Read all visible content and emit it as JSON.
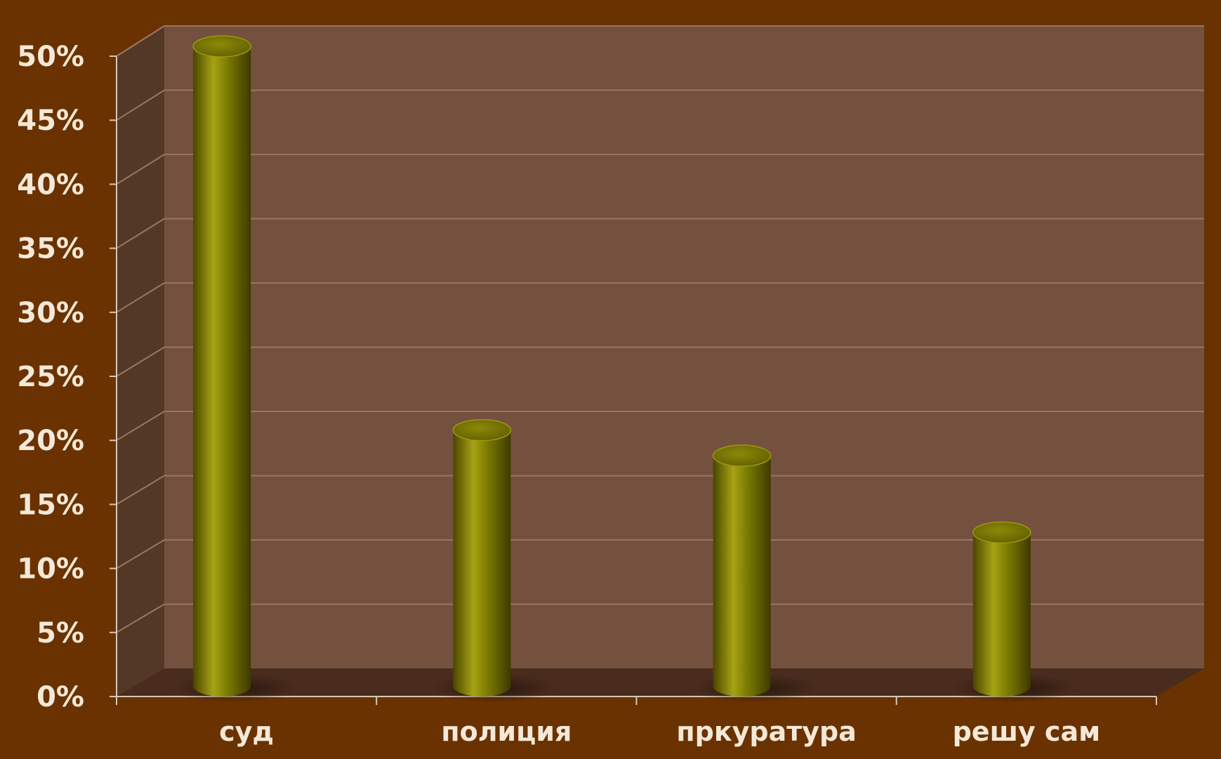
{
  "chart_data": {
    "type": "bar",
    "style": "3d-cylinder",
    "categories": [
      "суд",
      "полиция",
      "пркуратура",
      "решу сам"
    ],
    "values": [
      50,
      20,
      18,
      12
    ],
    "ylim": [
      0,
      50
    ],
    "ytick_values": [
      0,
      5,
      10,
      15,
      20,
      25,
      30,
      35,
      40,
      45,
      50
    ],
    "ytick_labels": [
      "0%",
      "5%",
      "10%",
      "15%",
      "20%",
      "25%",
      "30%",
      "35%",
      "40%",
      "45%",
      "50%"
    ],
    "title": "",
    "xlabel": "",
    "ylabel": "",
    "grid": true,
    "legend": "none",
    "colors": {
      "background": "#6a3200",
      "back_wall": "#74513f",
      "side_wall": "#533828",
      "floor": "#4a2c1e",
      "gridline": "#9a7560",
      "bar": "#7a7a00",
      "bar_highlight": "#a6a214",
      "bar_shadow": "#3d3a00",
      "text": "#f4e8d8"
    }
  }
}
